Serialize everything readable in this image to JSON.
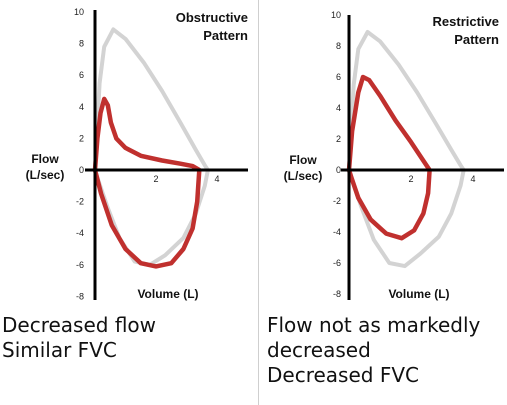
{
  "chart_data": [
    {
      "type": "line",
      "title": [
        "Obstructive",
        "Pattern"
      ],
      "xlabel": "Volume (L)",
      "ylabel": [
        "Flow",
        "(L/sec)"
      ],
      "x_ticks": [
        2,
        4
      ],
      "y_ticks": [
        10,
        8,
        6,
        4,
        2,
        0,
        -2,
        -4,
        -6,
        -8
      ],
      "xlim": [
        0,
        5
      ],
      "ylim": [
        -8,
        10
      ],
      "grid": false,
      "series": [
        {
          "color": "#d3d3d3",
          "points": [
            [
              0,
              0
            ],
            [
              0.15,
              5.5
            ],
            [
              0.3,
              7.8
            ],
            [
              0.6,
              8.9
            ],
            [
              1.0,
              8.3
            ],
            [
              1.6,
              6.8
            ],
            [
              2.2,
              5.0
            ],
            [
              2.8,
              3.0
            ],
            [
              3.3,
              1.3
            ],
            [
              3.6,
              0.3
            ],
            [
              3.7,
              0
            ],
            [
              3.6,
              -1.0
            ],
            [
              3.3,
              -2.8
            ],
            [
              2.9,
              -4.3
            ],
            [
              2.3,
              -5.4
            ],
            [
              1.8,
              -6.0
            ],
            [
              1.3,
              -5.8
            ],
            [
              0.8,
              -4.3
            ],
            [
              0.4,
              -2.3
            ],
            [
              0.1,
              -0.6
            ],
            [
              0,
              0
            ]
          ]
        },
        {
          "color": "#c0302e",
          "points": [
            [
              0,
              0
            ],
            [
              0.08,
              2.0
            ],
            [
              0.18,
              3.6
            ],
            [
              0.3,
              4.5
            ],
            [
              0.42,
              4.1
            ],
            [
              0.52,
              3.0
            ],
            [
              0.7,
              2.0
            ],
            [
              1.0,
              1.4
            ],
            [
              1.5,
              0.9
            ],
            [
              2.2,
              0.6
            ],
            [
              2.8,
              0.4
            ],
            [
              3.2,
              0.25
            ],
            [
              3.42,
              0
            ],
            [
              3.35,
              -2.0
            ],
            [
              3.2,
              -3.7
            ],
            [
              2.9,
              -5.0
            ],
            [
              2.5,
              -5.9
            ],
            [
              2.0,
              -6.1
            ],
            [
              1.5,
              -5.9
            ],
            [
              1.0,
              -5.0
            ],
            [
              0.55,
              -3.5
            ],
            [
              0.2,
              -1.5
            ],
            [
              0,
              0
            ]
          ]
        }
      ]
    },
    {
      "type": "line",
      "title": [
        "Restrictive",
        "Pattern"
      ],
      "xlabel": "Volume (L)",
      "ylabel": [
        "Flow",
        "(L/sec)"
      ],
      "x_ticks": [
        2,
        4
      ],
      "y_ticks": [
        10,
        8,
        6,
        4,
        2,
        0,
        -2,
        -4,
        -6,
        -8
      ],
      "xlim": [
        0,
        5
      ],
      "ylim": [
        -8,
        10
      ],
      "grid": false,
      "series": [
        {
          "color": "#d3d3d3",
          "points": [
            [
              0,
              0
            ],
            [
              0.15,
              5.5
            ],
            [
              0.3,
              7.8
            ],
            [
              0.6,
              8.9
            ],
            [
              1.0,
              8.3
            ],
            [
              1.6,
              6.8
            ],
            [
              2.2,
              5.0
            ],
            [
              2.8,
              3.0
            ],
            [
              3.3,
              1.3
            ],
            [
              3.6,
              0.3
            ],
            [
              3.7,
              0
            ],
            [
              3.6,
              -1.0
            ],
            [
              3.3,
              -2.8
            ],
            [
              2.9,
              -4.3
            ],
            [
              2.3,
              -5.4
            ],
            [
              1.8,
              -6.2
            ],
            [
              1.3,
              -6.0
            ],
            [
              0.8,
              -4.5
            ],
            [
              0.4,
              -2.4
            ],
            [
              0.1,
              -0.6
            ],
            [
              0,
              0
            ]
          ]
        },
        {
          "color": "#c0302e",
          "points": [
            [
              0,
              0
            ],
            [
              0.1,
              2.5
            ],
            [
              0.3,
              5.0
            ],
            [
              0.45,
              6.0
            ],
            [
              0.65,
              5.8
            ],
            [
              1.0,
              4.8
            ],
            [
              1.5,
              3.2
            ],
            [
              2.0,
              1.8
            ],
            [
              2.4,
              0.6
            ],
            [
              2.6,
              0
            ],
            [
              2.55,
              -1.5
            ],
            [
              2.4,
              -2.8
            ],
            [
              2.1,
              -3.9
            ],
            [
              1.7,
              -4.4
            ],
            [
              1.2,
              -4.1
            ],
            [
              0.7,
              -3.2
            ],
            [
              0.3,
              -1.8
            ],
            [
              0.08,
              -0.5
            ],
            [
              0,
              0
            ]
          ]
        }
      ]
    }
  ],
  "captions": {
    "left": [
      "Decreased flow",
      "Similar FVC"
    ],
    "right": [
      "Flow not as markedly",
      "decreased",
      "Decreased FVC"
    ]
  }
}
